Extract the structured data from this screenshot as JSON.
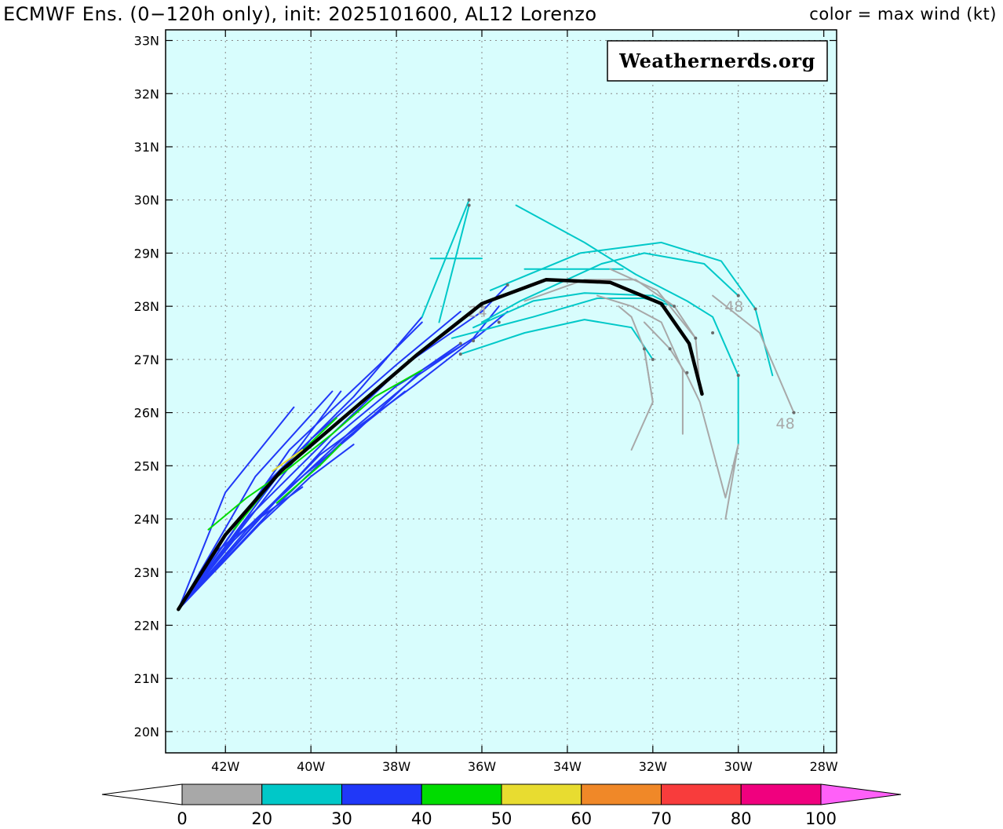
{
  "header": {
    "title": "ECMWF Ens. (0−120h only), init: 2025101600, AL12 Lorenzo",
    "legend_note": "color = max wind (kt)"
  },
  "watermark": "Weathernerds.org",
  "colors": {
    "ocean": "#d8fdfd",
    "grid": "#8a8a8a",
    "mean_track": "#000000"
  },
  "chart_data": {
    "type": "map",
    "title": "ECMWF Ens. (0−120h only), init: 2025101600, AL12 Lorenzo",
    "projection": "lat-lon",
    "lon_range": [
      -43.4,
      -27.7
    ],
    "lat_range": [
      19.6,
      33.2
    ],
    "x_ticks": [
      {
        "value": -42,
        "label": "42W"
      },
      {
        "value": -40,
        "label": "40W"
      },
      {
        "value": -38,
        "label": "38W"
      },
      {
        "value": -36,
        "label": "36W"
      },
      {
        "value": -34,
        "label": "34W"
      },
      {
        "value": -32,
        "label": "32W"
      },
      {
        "value": -30,
        "label": "30W"
      },
      {
        "value": -28,
        "label": "28W"
      }
    ],
    "y_ticks": [
      {
        "value": 20,
        "label": "20N"
      },
      {
        "value": 21,
        "label": "21N"
      },
      {
        "value": 22,
        "label": "22N"
      },
      {
        "value": 23,
        "label": "23N"
      },
      {
        "value": 24,
        "label": "24N"
      },
      {
        "value": 25,
        "label": "25N"
      },
      {
        "value": 26,
        "label": "26N"
      },
      {
        "value": 27,
        "label": "27N"
      },
      {
        "value": 28,
        "label": "28N"
      },
      {
        "value": 29,
        "label": "29N"
      },
      {
        "value": 30,
        "label": "30N"
      },
      {
        "value": 31,
        "label": "31N"
      },
      {
        "value": 32,
        "label": "32N"
      },
      {
        "value": 33,
        "label": "33N"
      }
    ],
    "grid": true,
    "colorbar": {
      "label": "max wind (kt)",
      "ticks": [
        "0",
        "20",
        "30",
        "40",
        "50",
        "60",
        "70",
        "80",
        "100"
      ],
      "bins": [
        {
          "from": 0,
          "to": 20,
          "color": "#a8a8a8"
        },
        {
          "from": 20,
          "to": 30,
          "color": "#00c8c8"
        },
        {
          "from": 30,
          "to": 40,
          "color": "#2038f8"
        },
        {
          "from": 40,
          "to": 50,
          "color": "#00dc00"
        },
        {
          "from": 50,
          "to": 60,
          "color": "#e8dc30"
        },
        {
          "from": 60,
          "to": 70,
          "color": "#f08828"
        },
        {
          "from": 70,
          "to": 80,
          "color": "#f83c3c"
        },
        {
          "from": 80,
          "to": 100,
          "color": "#f0007e"
        }
      ],
      "over_color": "#ff60f8"
    },
    "ensemble_mean": [
      [
        -43.1,
        22.3
      ],
      [
        -42.0,
        23.7
      ],
      [
        -40.7,
        24.9
      ],
      [
        -39.1,
        26.0
      ],
      [
        -37.5,
        27.1
      ],
      [
        -36.0,
        28.05
      ],
      [
        -34.5,
        28.5
      ],
      [
        -33.0,
        28.45
      ],
      [
        -31.8,
        28.05
      ],
      [
        -31.15,
        27.3
      ],
      [
        -30.85,
        26.35
      ]
    ],
    "mean_track_name": "Ensemble mean",
    "members": [
      {
        "color": "#2038f8",
        "points": [
          [
            -43.1,
            22.3
          ],
          [
            -42.0,
            24.5
          ],
          [
            -40.4,
            26.1
          ]
        ]
      },
      {
        "color": "#2038f8",
        "points": [
          [
            -43.1,
            22.3
          ],
          [
            -41.3,
            24.8
          ],
          [
            -39.5,
            26.4
          ]
        ]
      },
      {
        "color": "#2038f8",
        "points": [
          [
            -43.1,
            22.3
          ],
          [
            -40.6,
            25.0
          ],
          [
            -39.3,
            26.4
          ]
        ]
      },
      {
        "color": "#2038f8",
        "points": [
          [
            -43.1,
            22.3
          ],
          [
            -41.0,
            24.7
          ],
          [
            -39.0,
            26.3
          ],
          [
            -37.4,
            27.8
          ]
        ]
      },
      {
        "color": "#2038f8",
        "points": [
          [
            -43.1,
            22.3
          ],
          [
            -40.5,
            25.3
          ],
          [
            -38.4,
            26.9
          ],
          [
            -37.4,
            27.7
          ]
        ]
      },
      {
        "color": "#2038f8",
        "points": [
          [
            -43.1,
            22.3
          ],
          [
            -40.0,
            25.5
          ],
          [
            -38.0,
            26.9
          ],
          [
            -36.5,
            27.9
          ]
        ]
      },
      {
        "color": "#2038f8",
        "points": [
          [
            -43.1,
            22.3
          ],
          [
            -41.5,
            24.0
          ],
          [
            -39.5,
            25.6
          ],
          [
            -37.8,
            26.9
          ],
          [
            -36.0,
            27.9
          ],
          [
            -35.4,
            28.4
          ]
        ]
      },
      {
        "color": "#2038f8",
        "points": [
          [
            -43.1,
            22.3
          ],
          [
            -41.0,
            24.2
          ],
          [
            -39.0,
            25.7
          ],
          [
            -37.5,
            26.7
          ],
          [
            -36.4,
            27.3
          ]
        ]
      },
      {
        "color": "#2038f8",
        "points": [
          [
            -43.1,
            22.3
          ],
          [
            -41.2,
            24.0
          ],
          [
            -39.5,
            25.5
          ],
          [
            -38.0,
            26.5
          ],
          [
            -36.2,
            27.4
          ],
          [
            -35.6,
            28.0
          ]
        ]
      },
      {
        "color": "#2038f8",
        "points": [
          [
            -43.1,
            22.3
          ],
          [
            -41.5,
            23.8
          ],
          [
            -39.8,
            25.2
          ],
          [
            -37.6,
            26.5
          ],
          [
            -36.0,
            27.5
          ],
          [
            -35.4,
            27.9
          ]
        ]
      },
      {
        "color": "#2038f8",
        "points": [
          [
            -43.1,
            22.3
          ],
          [
            -41.8,
            23.6
          ],
          [
            -40.5,
            24.6
          ],
          [
            -39.0,
            25.6
          ],
          [
            -37.4,
            26.8
          ],
          [
            -36.5,
            27.3
          ]
        ]
      },
      {
        "color": "#2038f8",
        "points": [
          [
            -43.1,
            22.3
          ],
          [
            -41.2,
            23.9
          ],
          [
            -40.0,
            24.8
          ],
          [
            -39.0,
            25.4
          ]
        ]
      },
      {
        "color": "#2038f8",
        "points": [
          [
            -43.1,
            22.3
          ],
          [
            -42.2,
            23.4
          ],
          [
            -41.4,
            23.9
          ],
          [
            -40.2,
            24.6
          ]
        ]
      },
      {
        "color": "#2038f8",
        "points": [
          [
            -43.1,
            22.3
          ],
          [
            -41.0,
            24.1
          ],
          [
            -39.2,
            25.5
          ],
          [
            -37.8,
            26.4
          ]
        ]
      },
      {
        "color": "#00dc00",
        "points": [
          [
            -42.4,
            23.8
          ],
          [
            -41.5,
            24.4
          ],
          [
            -40.6,
            24.9
          ],
          [
            -39.5,
            25.6
          ],
          [
            -38.5,
            26.3
          ],
          [
            -37.4,
            26.8
          ]
        ]
      },
      {
        "color": "#00dc00",
        "points": [
          [
            -41.8,
            23.8
          ],
          [
            -40.7,
            24.9
          ],
          [
            -39.4,
            25.9
          ]
        ]
      },
      {
        "color": "#00dc00",
        "points": [
          [
            -40.8,
            24.3
          ],
          [
            -39.8,
            25.0
          ],
          [
            -39.3,
            25.4
          ]
        ]
      },
      {
        "color": "#e8dc30",
        "points": [
          [
            -40.9,
            24.9
          ],
          [
            -40.2,
            25.3
          ]
        ]
      },
      {
        "color": "#00c8c8",
        "points": [
          [
            -37.0,
            27.7
          ],
          [
            -36.3,
            29.9
          ]
        ]
      },
      {
        "color": "#00c8c8",
        "points": [
          [
            -37.4,
            27.8
          ],
          [
            -36.3,
            30.0
          ]
        ]
      },
      {
        "color": "#00c8c8",
        "points": [
          [
            -37.2,
            28.9
          ],
          [
            -36.0,
            28.9
          ]
        ]
      },
      {
        "color": "#00c8c8",
        "points": [
          [
            -35.0,
            28.7
          ],
          [
            -32.7,
            28.7
          ]
        ]
      },
      {
        "color": "#00c8c8",
        "points": [
          [
            -35.2,
            29.9
          ],
          [
            -33.6,
            29.2
          ],
          [
            -32.4,
            28.6
          ],
          [
            -31.2,
            28.1
          ],
          [
            -30.6,
            27.8
          ],
          [
            -30.0,
            26.7
          ],
          [
            -30.0,
            25.4
          ]
        ]
      },
      {
        "color": "#00c8c8",
        "points": [
          [
            -35.8,
            28.3
          ],
          [
            -33.7,
            29.0
          ],
          [
            -31.8,
            29.2
          ],
          [
            -30.4,
            28.85
          ],
          [
            -29.6,
            27.95
          ],
          [
            -29.2,
            26.7
          ]
        ]
      },
      {
        "color": "#00c8c8",
        "points": [
          [
            -36.0,
            27.7
          ],
          [
            -35.1,
            28.1
          ],
          [
            -33.2,
            28.8
          ],
          [
            -32.2,
            29.0
          ],
          [
            -30.8,
            28.8
          ],
          [
            -30.0,
            28.2
          ]
        ]
      },
      {
        "color": "#00c8c8",
        "points": [
          [
            -36.5,
            27.1
          ],
          [
            -35.0,
            27.5
          ],
          [
            -33.6,
            27.75
          ],
          [
            -32.5,
            27.6
          ],
          [
            -32.0,
            27.0
          ]
        ]
      },
      {
        "color": "#00c8c8",
        "points": [
          [
            -36.2,
            27.6
          ],
          [
            -34.8,
            28.1
          ],
          [
            -33.6,
            28.25
          ],
          [
            -32.0,
            28.2
          ],
          [
            -31.5,
            28.0
          ]
        ]
      },
      {
        "color": "#00c8c8",
        "points": [
          [
            -36.7,
            27.4
          ],
          [
            -34.8,
            27.8
          ],
          [
            -33.3,
            28.15
          ],
          [
            -32.2,
            28.15
          ],
          [
            -31.5,
            28.0
          ]
        ]
      },
      {
        "color": "#a8a8a8",
        "points": [
          [
            -35.0,
            28.1
          ],
          [
            -33.6,
            28.5
          ],
          [
            -32.4,
            28.5
          ],
          [
            -31.5,
            28.0
          ],
          [
            -31.0,
            27.4
          ]
        ]
      },
      {
        "color": "#a8a8a8",
        "points": [
          [
            -33.3,
            28.2
          ],
          [
            -32.5,
            28.0
          ],
          [
            -31.8,
            27.7
          ],
          [
            -31.3,
            26.8
          ],
          [
            -31.3,
            25.6
          ]
        ]
      },
      {
        "color": "#a8a8a8",
        "points": [
          [
            -33.0,
            28.7
          ],
          [
            -31.9,
            28.3
          ],
          [
            -31.0,
            27.4
          ],
          [
            -30.9,
            26.5
          ]
        ]
      },
      {
        "color": "#a8a8a8",
        "points": [
          [
            -32.2,
            27.7
          ],
          [
            -31.6,
            27.2
          ],
          [
            -31.2,
            26.7
          ],
          [
            -30.9,
            26.2
          ],
          [
            -30.3,
            24.4
          ],
          [
            -30.0,
            25.4
          ],
          [
            -30.3,
            24.0
          ]
        ]
      },
      {
        "color": "#a8a8a8",
        "points": [
          [
            -32.8,
            28.0
          ],
          [
            -32.5,
            27.8
          ],
          [
            -32.2,
            27.2
          ],
          [
            -32.0,
            26.2
          ],
          [
            -32.5,
            25.3
          ]
        ]
      },
      {
        "color": "#a8a8a8",
        "points": [
          [
            -32.2,
            27.2
          ],
          [
            -32.0,
            26.2
          ]
        ]
      },
      {
        "color": "#a8a8a8",
        "points": [
          [
            -30.6,
            28.2
          ],
          [
            -29.5,
            27.5
          ],
          [
            -28.7,
            26.0
          ]
        ]
      }
    ],
    "point_markers": [
      [
        -36.3,
        30.0
      ],
      [
        -36.3,
        29.9
      ],
      [
        -30.0,
        28.2
      ],
      [
        -29.6,
        27.95
      ],
      [
        -30.6,
        27.5
      ],
      [
        -31.0,
        27.4
      ],
      [
        -31.5,
        28.0
      ],
      [
        -31.6,
        27.2
      ],
      [
        -31.2,
        26.75
      ],
      [
        -32.2,
        27.2
      ],
      [
        -32.0,
        27.0
      ],
      [
        -28.7,
        26.0
      ],
      [
        -30.0,
        26.7
      ],
      [
        -36.0,
        28.0
      ],
      [
        -35.6,
        27.7
      ],
      [
        -36.2,
        27.35
      ],
      [
        -36.5,
        27.1
      ],
      [
        -36.5,
        27.3
      ],
      [
        -35.4,
        28.4
      ]
    ],
    "lead_labels": [
      {
        "text": "24",
        "lon": -36.1,
        "lat": 27.8
      },
      {
        "text": "48",
        "lon": -30.1,
        "lat": 27.9
      },
      {
        "text": "48",
        "lon": -28.9,
        "lat": 25.7
      }
    ]
  }
}
